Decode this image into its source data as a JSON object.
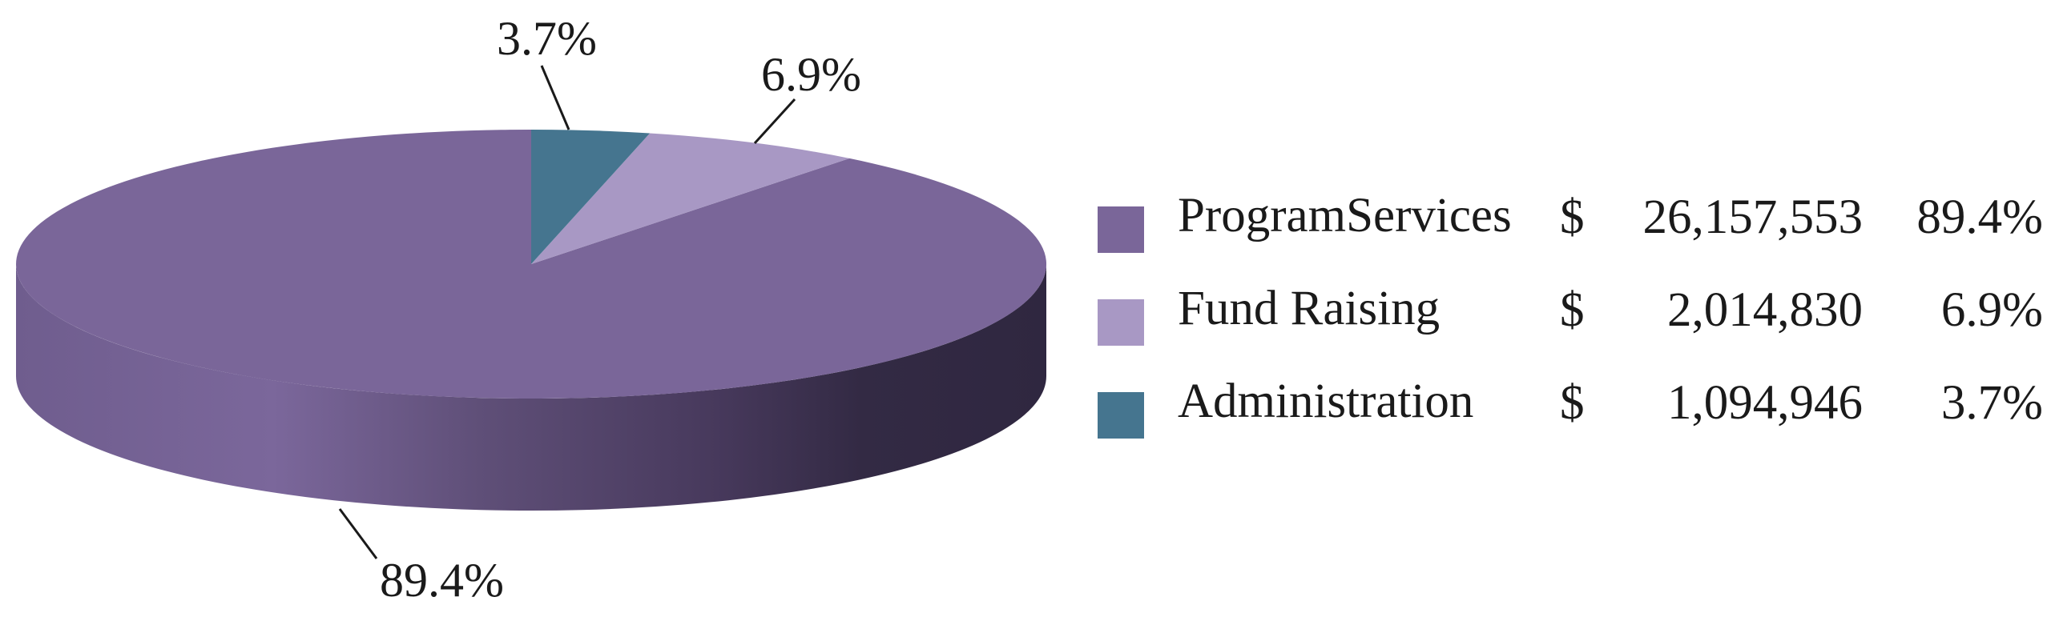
{
  "colors": {
    "program_services": "#7a6699",
    "fund_raising": "#a898c4",
    "administration": "#45758f",
    "side_dark": "#332a44",
    "leader_line": "#1a1a1a"
  },
  "chart_data": {
    "type": "pie",
    "style": "3d",
    "title": "",
    "slices": [
      {
        "name": "ProgramServices",
        "dollar": "$",
        "amount": "26,157,553",
        "percent": "89.4%",
        "value": 89.4,
        "color": "#7a6699"
      },
      {
        "name": "Fund Raising",
        "dollar": "$",
        "amount": "2,014,830",
        "percent": "6.9%",
        "value": 6.9,
        "color": "#a898c4"
      },
      {
        "name": "Administration",
        "dollar": "$",
        "amount": "1,094,946",
        "percent": "3.7%",
        "value": 3.7,
        "color": "#45758f"
      }
    ],
    "data_labels": [
      "3.7%",
      "6.9%",
      "89.4%"
    ],
    "legend_position": "right"
  }
}
